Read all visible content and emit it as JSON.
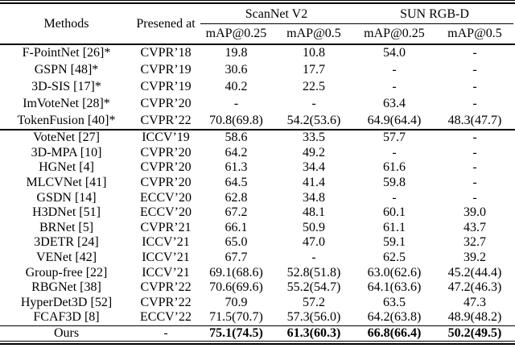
{
  "page": {
    "background": "#ffffff",
    "text_color": "#000000",
    "rule_color": "#000000"
  },
  "table": {
    "header": {
      "methods_label": "Methods",
      "presented_at_label": "Presened at",
      "column_groups": [
        {
          "label": "ScanNet V2",
          "subcolumns": [
            "mAP@0.25",
            "mAP@0.5"
          ]
        },
        {
          "label": "SUN RGB-D",
          "subcolumns": [
            "mAP@0.25",
            "mAP@0.5"
          ]
        }
      ]
    },
    "blocks": [
      {
        "rows": [
          {
            "method": "F-PointNet [26]*",
            "venue": "CVPR’18",
            "values": [
              "19.8",
              "10.8",
              "54.0",
              "-"
            ]
          },
          {
            "method": "GSPN [48]*",
            "venue": "CVPR’19",
            "values": [
              "30.6",
              "17.7",
              "-",
              "-"
            ]
          },
          {
            "method": "3D-SIS [17]*",
            "venue": "CVPR’19",
            "values": [
              "40.2",
              "22.5",
              "-",
              "-"
            ]
          },
          {
            "method": "ImVoteNet [28]*",
            "venue": "CVPR’20",
            "values": [
              "-",
              "-",
              "63.4",
              "-"
            ]
          },
          {
            "method": "TokenFusion [40]*",
            "venue": "CVPR’22",
            "values": [
              "70.8(69.8)",
              "54.2(53.6)",
              "64.9(64.4)",
              "48.3(47.7)"
            ]
          }
        ]
      },
      {
        "rows": [
          {
            "method": "VoteNet [27]",
            "venue": "ICCV’19",
            "values": [
              "58.6",
              "33.5",
              "57.7",
              "-"
            ]
          },
          {
            "method": "3D-MPA [10]",
            "venue": "CVPR’20",
            "values": [
              "64.2",
              "49.2",
              "-",
              "-"
            ]
          },
          {
            "method": "HGNet [4]",
            "venue": "CVPR’20",
            "values": [
              "61.3",
              "34.4",
              "61.6",
              "-"
            ]
          },
          {
            "method": "MLCVNet [41]",
            "venue": "CVPR’20",
            "values": [
              "64.5",
              "41.4",
              "59.8",
              "-"
            ]
          },
          {
            "method": "GSDN [14]",
            "venue": "ECCV’20",
            "values": [
              "62.8",
              "34.8",
              "-",
              "-"
            ]
          },
          {
            "method": "H3DNet [51]",
            "venue": "ECCV’20",
            "values": [
              "67.2",
              "48.1",
              "60.1",
              "39.0"
            ]
          },
          {
            "method": "BRNet [5]",
            "venue": "CVPR’21",
            "values": [
              "66.1",
              "50.9",
              "61.1",
              "43.7"
            ]
          },
          {
            "method": "3DETR [24]",
            "venue": "ICCV’21",
            "values": [
              "65.0",
              "47.0",
              "59.1",
              "32.7"
            ]
          },
          {
            "method": "VENet [42]",
            "venue": "ICCV’21",
            "values": [
              "67.7",
              "-",
              "62.5",
              "39.2"
            ]
          },
          {
            "method": "Group-free [22]",
            "venue": "ICCV’21",
            "values": [
              "69.1(68.6)",
              "52.8(51.8)",
              "63.0(62.6)",
              "45.2(44.4)"
            ]
          },
          {
            "method": "RBGNet [38]",
            "venue": "CVPR’22",
            "values": [
              "70.6(69.6)",
              "55.2(54.7)",
              "64.1(63.6)",
              "47.2(46.3)"
            ]
          },
          {
            "method": "HyperDet3D [52]",
            "venue": "CVPR’22",
            "values": [
              "70.9",
              "57.2",
              "63.5",
              "47.3"
            ]
          },
          {
            "method": "FCAF3D [8]",
            "venue": "ECCV’22",
            "values": [
              "71.5(70.7)",
              "57.3(56.0)",
              "64.2(63.8)",
              "48.9(48.2)"
            ]
          }
        ]
      },
      {
        "rows": [
          {
            "method": "Ours",
            "venue": "-",
            "values": [
              "75.1(74.5)",
              "61.3(60.3)",
              "66.8(66.4)",
              "50.2(49.5)"
            ],
            "bold_values": true
          }
        ]
      }
    ]
  }
}
